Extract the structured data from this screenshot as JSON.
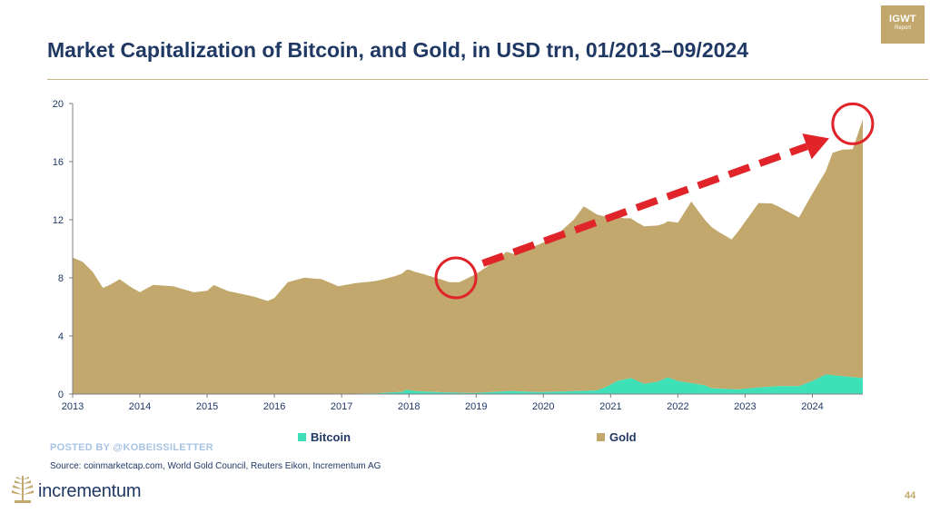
{
  "badge": {
    "main": "IGWT",
    "sub": "Report"
  },
  "title": "Market Capitalization of Bitcoin, and Gold, in USD trn, 01/2013–09/2024",
  "chart_data": {
    "type": "area",
    "title": "Market Capitalization of Bitcoin, and Gold, in USD trn, 01/2013–09/2024",
    "x_ticks": [
      "2013",
      "2014",
      "2015",
      "2016",
      "2017",
      "2018",
      "2019",
      "2020",
      "2021",
      "2022",
      "2023",
      "2024"
    ],
    "y_ticks": [
      "0",
      "4",
      "8",
      "12",
      "16",
      "20"
    ],
    "xlim": [
      2013.0,
      2024.75
    ],
    "ylim": [
      0,
      20
    ],
    "stacked": true,
    "grid": false,
    "legend_position": "bottom",
    "series": [
      {
        "name": "Bitcoin",
        "color": "#3ee0b8",
        "x": [
          2013.0,
          2013.9,
          2014.5,
          2015.5,
          2016.5,
          2017.0,
          2017.5,
          2017.9,
          2017.96,
          2018.1,
          2018.5,
          2018.96,
          2019.5,
          2019.95,
          2020.5,
          2020.8,
          2020.96,
          2021.1,
          2021.3,
          2021.5,
          2021.7,
          2021.85,
          2022.0,
          2022.4,
          2022.5,
          2022.9,
          2023.2,
          2023.5,
          2023.8,
          2024.0,
          2024.2,
          2024.5,
          2024.75
        ],
        "values": [
          0.0,
          0.01,
          0.01,
          0.005,
          0.01,
          0.02,
          0.05,
          0.15,
          0.3,
          0.2,
          0.12,
          0.07,
          0.2,
          0.13,
          0.2,
          0.25,
          0.55,
          0.9,
          1.1,
          0.7,
          0.85,
          1.15,
          0.9,
          0.6,
          0.4,
          0.32,
          0.45,
          0.55,
          0.55,
          0.9,
          1.35,
          1.2,
          1.1
        ]
      },
      {
        "name": "Gold",
        "color": "#c2a86c",
        "x": [
          2013.0,
          2013.15,
          2013.3,
          2013.45,
          2013.55,
          2013.7,
          2013.85,
          2014.0,
          2014.2,
          2014.5,
          2014.8,
          2015.0,
          2015.1,
          2015.3,
          2015.5,
          2015.7,
          2015.9,
          2016.0,
          2016.2,
          2016.45,
          2016.7,
          2016.85,
          2016.95,
          2017.2,
          2017.45,
          2017.6,
          2017.8,
          2018.0,
          2018.2,
          2018.45,
          2018.6,
          2018.75,
          2019.0,
          2019.25,
          2019.45,
          2019.6,
          2019.8,
          2020.0,
          2020.2,
          2020.45,
          2020.6,
          2020.8,
          2021.0,
          2021.2,
          2021.4,
          2021.6,
          2021.8,
          2022.0,
          2022.2,
          2022.4,
          2022.6,
          2022.8,
          2023.0,
          2023.2,
          2023.4,
          2023.6,
          2023.8,
          2024.0,
          2024.2,
          2024.3,
          2024.45,
          2024.6,
          2024.75
        ],
        "values": [
          9.4,
          9.1,
          8.4,
          7.3,
          7.5,
          7.9,
          7.4,
          7.0,
          7.5,
          7.4,
          7.0,
          7.1,
          7.5,
          7.1,
          6.9,
          6.7,
          6.4,
          6.6,
          7.7,
          8.0,
          7.9,
          7.6,
          7.4,
          7.6,
          7.7,
          7.8,
          8.0,
          8.3,
          8.1,
          7.8,
          7.6,
          7.6,
          8.2,
          8.9,
          9.6,
          9.4,
          9.9,
          10.3,
          10.8,
          11.8,
          12.7,
          12.1,
          11.5,
          11.1,
          10.9,
          10.8,
          10.7,
          10.9,
          12.5,
          11.4,
          10.8,
          10.3,
          11.5,
          12.7,
          12.6,
          12.1,
          11.6,
          12.9,
          14.0,
          15.3,
          15.6,
          15.7,
          17.8
        ]
      }
    ],
    "annotations": [
      {
        "type": "circle",
        "x": 2018.7,
        "y": 8.0,
        "color": "#e0242a"
      },
      {
        "type": "circle",
        "x": 2024.6,
        "y": 18.6,
        "color": "#e0242a"
      },
      {
        "type": "dashed-arrow",
        "from": [
          2019.1,
          9.0
        ],
        "to": [
          2024.25,
          17.6
        ],
        "color": "#e0242a"
      }
    ]
  },
  "legend": {
    "bitcoin": "Bitcoin",
    "gold": "Gold"
  },
  "footer": {
    "posted_by": "POSTED BY @KOBEISSILETTER",
    "source": "Source: coinmarketcap.com, World Gold Council, Reuters Eikon, Incrementum AG",
    "logo_text": "incrementum",
    "page_number": "44"
  },
  "colors": {
    "title": "#1f3864",
    "gold": "#c2a86c",
    "bitcoin": "#3ee0b8",
    "annotation": "#e0242a",
    "posted": "#a9c3e3"
  }
}
